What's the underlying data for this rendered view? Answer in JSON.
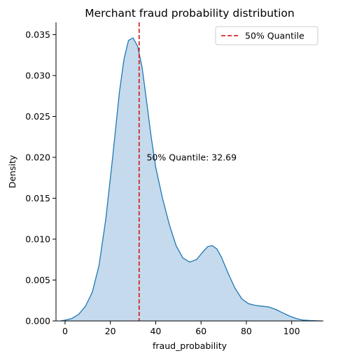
{
  "chart_data": {
    "type": "area",
    "title": "Merchant fraud probability distribution",
    "xlabel": "fraud_probability",
    "ylabel": "Density",
    "xlim": [
      -4,
      114
    ],
    "ylim": [
      0,
      0.0365
    ],
    "xticks": [
      0,
      20,
      40,
      60,
      80,
      100
    ],
    "yticks": [
      0.0,
      0.005,
      0.01,
      0.015,
      0.02,
      0.025,
      0.03,
      0.035
    ],
    "ytick_labels": [
      "0.000",
      "0.005",
      "0.010",
      "0.015",
      "0.020",
      "0.025",
      "0.030",
      "0.035"
    ],
    "series": [
      {
        "x": [
          -2,
          0,
          3,
          6,
          9,
          12,
          15,
          18,
          21,
          24,
          26,
          28,
          30,
          32,
          34,
          36,
          38,
          40,
          43,
          46,
          49,
          52,
          55,
          58,
          61,
          63,
          65,
          67,
          69,
          72,
          75,
          78,
          81,
          84,
          87,
          90,
          93,
          96,
          99,
          102,
          105,
          108,
          111,
          113
        ],
        "y": [
          0.0,
          0.0001,
          0.0003,
          0.0008,
          0.0018,
          0.0035,
          0.0068,
          0.0125,
          0.02,
          0.028,
          0.032,
          0.0343,
          0.0346,
          0.0336,
          0.031,
          0.0268,
          0.0225,
          0.0188,
          0.015,
          0.0118,
          0.0092,
          0.0077,
          0.0072,
          0.0075,
          0.0085,
          0.0091,
          0.0092,
          0.0088,
          0.0078,
          0.0058,
          0.004,
          0.0027,
          0.0021,
          0.0019,
          0.0018,
          0.0017,
          0.0014,
          0.001,
          0.0006,
          0.0003,
          0.0001,
          5e-05,
          2e-05,
          0.0
        ]
      }
    ],
    "quantile": {
      "value": 32.69,
      "legend_label": "50% Quantile",
      "annotation": "50% Quantile: 32.69",
      "annotation_x": 36,
      "annotation_y": 0.02
    },
    "grid": false,
    "legend_position": "top-right",
    "colors": {
      "line": "#1f77b4",
      "fill": "#c5daec",
      "quantile": "#d62728"
    }
  }
}
